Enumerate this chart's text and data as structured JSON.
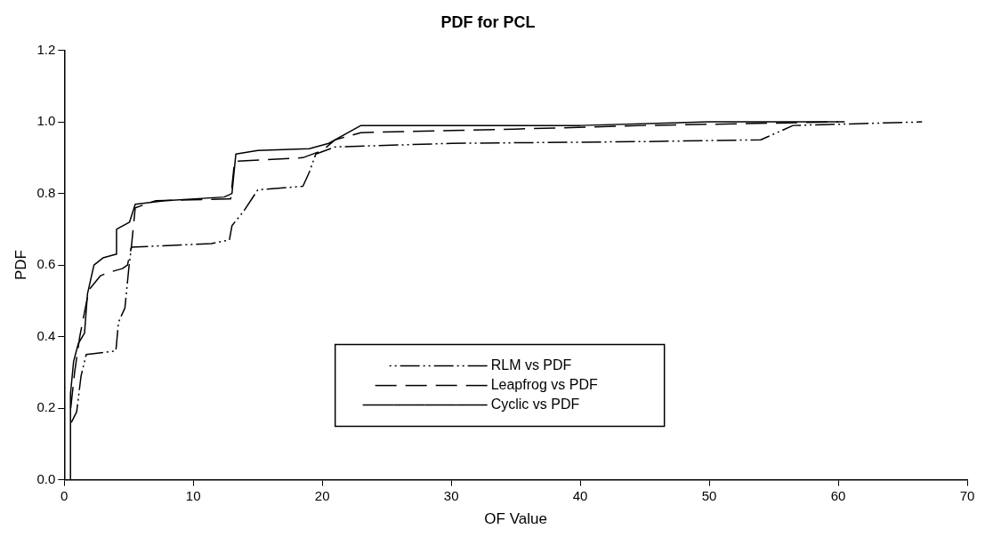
{
  "chart_data": {
    "type": "line",
    "title": "PDF for PCL",
    "xlabel": "OF Value",
    "ylabel": "PDF",
    "xlim": [
      0,
      70
    ],
    "xticks": [
      0,
      10,
      20,
      30,
      40,
      50,
      60,
      70
    ],
    "ylim": [
      0,
      1.2
    ],
    "yticks": [
      {
        "value": 0,
        "label": "0.0"
      },
      {
        "value": 0.2,
        "label": "0.2"
      },
      {
        "value": 0.4,
        "label": "0.4"
      },
      {
        "value": 0.6,
        "label": "0.6"
      },
      {
        "value": 0.8,
        "label": "0.8"
      },
      {
        "value": 1,
        "label": "1.0"
      },
      {
        "value": 1.2,
        "label": "1.2"
      }
    ],
    "grid": false,
    "legend": "bottom",
    "marker": "none",
    "series": [
      {
        "name": "RLM vs PDF",
        "color": "#000000",
        "line_style": "dashdotdot",
        "x": [
          0.55,
          0.96,
          1.3,
          1.7,
          4.0,
          4.2,
          4.7,
          5.0,
          5.2,
          11.4,
          12.8,
          13.0,
          13.9,
          15.0,
          18.5,
          19.0,
          19.5,
          21.0,
          30.0,
          45.0,
          54.0,
          56.5,
          66.5
        ],
        "values": [
          0.16,
          0.19,
          0.29,
          0.35,
          0.36,
          0.44,
          0.48,
          0.59,
          0.65,
          0.66,
          0.67,
          0.71,
          0.75,
          0.81,
          0.82,
          0.86,
          0.91,
          0.93,
          0.94,
          0.945,
          0.95,
          0.99,
          1.0
        ]
      },
      {
        "name": "Leapfrog vs PDF",
        "color": "#000000",
        "line_style": "dashed",
        "x": [
          0.5,
          0.8,
          1.2,
          1.9,
          2.8,
          3.5,
          4.5,
          4.9,
          5.2,
          5.5,
          7.1,
          12.9,
          13.2,
          18.5,
          20.0,
          21.0,
          23.0,
          35.0,
          45.0,
          60.0
        ],
        "values": [
          0.2,
          0.3,
          0.4,
          0.53,
          0.57,
          0.58,
          0.59,
          0.6,
          0.65,
          0.76,
          0.78,
          0.785,
          0.89,
          0.9,
          0.92,
          0.95,
          0.97,
          0.98,
          0.99,
          1.0
        ]
      },
      {
        "name": "Cyclic vs PDF",
        "color": "#000000",
        "line_style": "solid",
        "x": [
          0.48,
          0.48,
          0.72,
          1.08,
          1.57,
          1.8,
          2.3,
          3.0,
          4.0,
          4.05,
          5.06,
          5.5,
          7.8,
          12.4,
          13.0,
          13.3,
          15.0,
          19.0,
          20.5,
          22.0,
          23.0,
          40.0,
          50.0,
          60.5
        ],
        "values": [
          0.0,
          0.24,
          0.33,
          0.38,
          0.41,
          0.52,
          0.6,
          0.62,
          0.63,
          0.7,
          0.72,
          0.77,
          0.78,
          0.79,
          0.8,
          0.91,
          0.92,
          0.925,
          0.94,
          0.97,
          0.99,
          0.99,
          1.0,
          1.0
        ]
      }
    ]
  }
}
